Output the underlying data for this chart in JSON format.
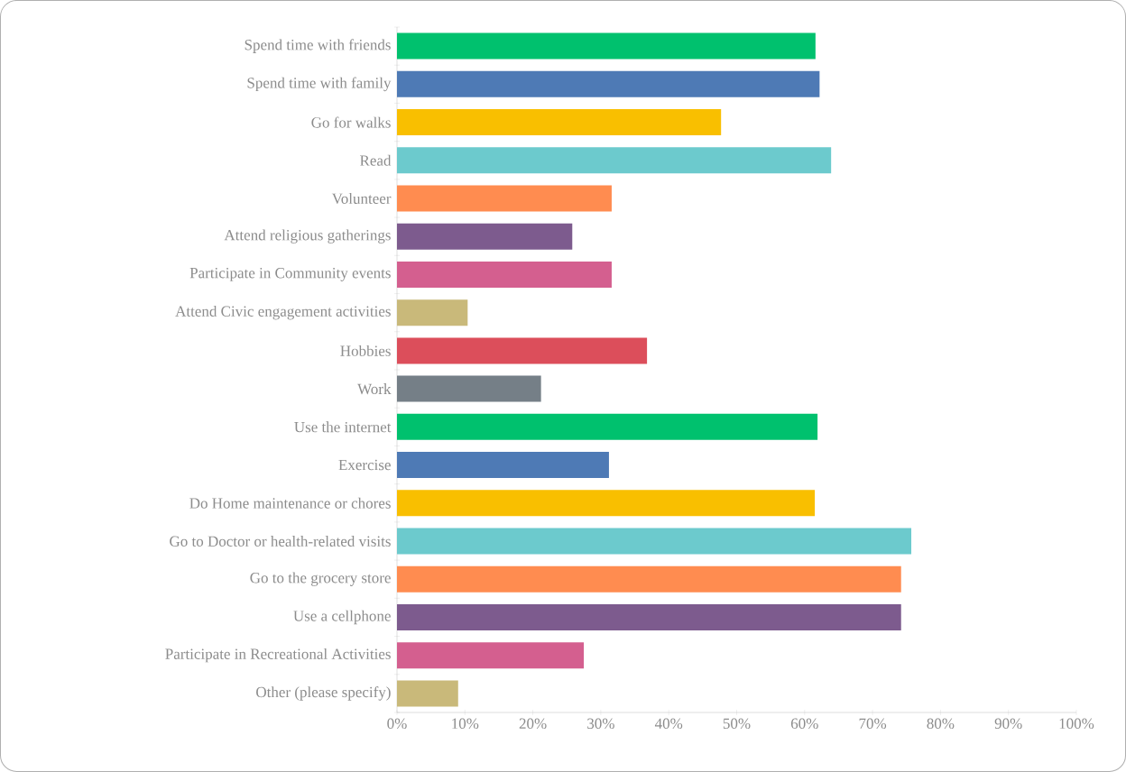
{
  "chart_data": {
    "type": "bar",
    "orientation": "horizontal",
    "categories": [
      "Spend time with friends",
      "Spend time with family",
      "Go for walks",
      "Read",
      "Volunteer",
      "Attend religious gatherings",
      "Participate in Community events",
      "Attend Civic engagement activities",
      "Hobbies",
      "Work",
      "Use the internet",
      "Exercise",
      "Do Home maintenance or chores",
      "Go to Doctor or health-related visits",
      "Go to the grocery store",
      "Use a cellphone",
      "Participate in Recreational Activities",
      "Other (please specify)"
    ],
    "values": [
      61.6,
      62.2,
      47.7,
      63.9,
      31.6,
      25.8,
      31.6,
      10.4,
      36.8,
      21.2,
      61.9,
      31.2,
      61.5,
      75.7,
      74.2,
      74.2,
      27.5,
      9.0
    ],
    "colors": [
      "#00c16e",
      "#4e7ab5",
      "#f9bf00",
      "#6ccacd",
      "#ff8c50",
      "#7d5b8e",
      "#d45f8f",
      "#c9b97a",
      "#dc4e5b",
      "#757f87",
      "#00c16e",
      "#4e7ab5",
      "#f9bf00",
      "#6ccacd",
      "#ff8c50",
      "#7d5b8e",
      "#d45f8f",
      "#c9b97a"
    ],
    "xlim": [
      0,
      100
    ],
    "xticks": [
      {
        "value": 0,
        "label": "0%"
      },
      {
        "value": 10,
        "label": "10%"
      },
      {
        "value": 20,
        "label": "20%"
      },
      {
        "value": 30,
        "label": "30%"
      },
      {
        "value": 40,
        "label": "40%"
      },
      {
        "value": 50,
        "label": "50%"
      },
      {
        "value": 60,
        "label": "60%"
      },
      {
        "value": 70,
        "label": "70%"
      },
      {
        "value": 80,
        "label": "80%"
      },
      {
        "value": 90,
        "label": "90%"
      },
      {
        "value": 100,
        "label": "100%"
      }
    ]
  }
}
